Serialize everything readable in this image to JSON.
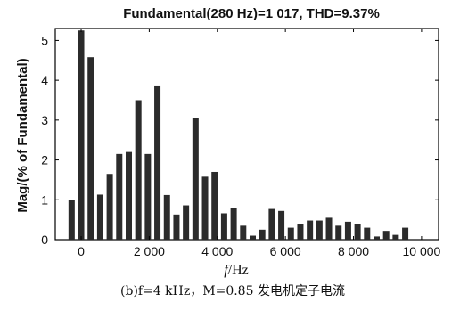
{
  "chart_data": {
    "type": "bar",
    "title": "Fundamental(280 Hz)=1 017, THD=9.37%",
    "ylabel": "Mag/(% of Fundamental)",
    "xlabel_italic": "f",
    "xlabel_unit": "/Hz",
    "caption": "(b)f=4 kHz，M=0.85 发电机定子电流",
    "xlim": [
      -760,
      10500
    ],
    "ylim": [
      0,
      5.3
    ],
    "xticks": [
      0,
      2000,
      4000,
      6000,
      8000,
      10000
    ],
    "xtick_labels": [
      "0",
      "2 000",
      "4 000",
      "6 000",
      "8 000",
      "10 000"
    ],
    "yticks": [
      0,
      1,
      2,
      3,
      4,
      5
    ],
    "ytick_labels": [
      "0",
      "1",
      "2",
      "3",
      "4",
      "5"
    ],
    "bar_color": "#2b2b2b",
    "x": [
      -280,
      0,
      280,
      560,
      840,
      1120,
      1400,
      1680,
      1960,
      2240,
      2520,
      2800,
      3080,
      3360,
      3640,
      3920,
      4200,
      4480,
      4760,
      5040,
      5320,
      5600,
      5880,
      6160,
      6440,
      6720,
      7000,
      7280,
      7560,
      7840,
      8120,
      8400,
      8680,
      8960,
      9240,
      9520,
      9800,
      10080
    ],
    "values": [
      1.0,
      5.25,
      4.58,
      1.13,
      1.65,
      2.15,
      2.2,
      3.5,
      2.15,
      3.87,
      1.12,
      0.63,
      0.86,
      3.06,
      1.58,
      1.7,
      0.66,
      0.8,
      0.35,
      0.1,
      0.25,
      0.77,
      0.72,
      0.3,
      0.38,
      0.48,
      0.48,
      0.55,
      0.35,
      0.45,
      0.4,
      0.3,
      0.08,
      0.22,
      0.12,
      0.3,
      0.0,
      0.0
    ]
  }
}
